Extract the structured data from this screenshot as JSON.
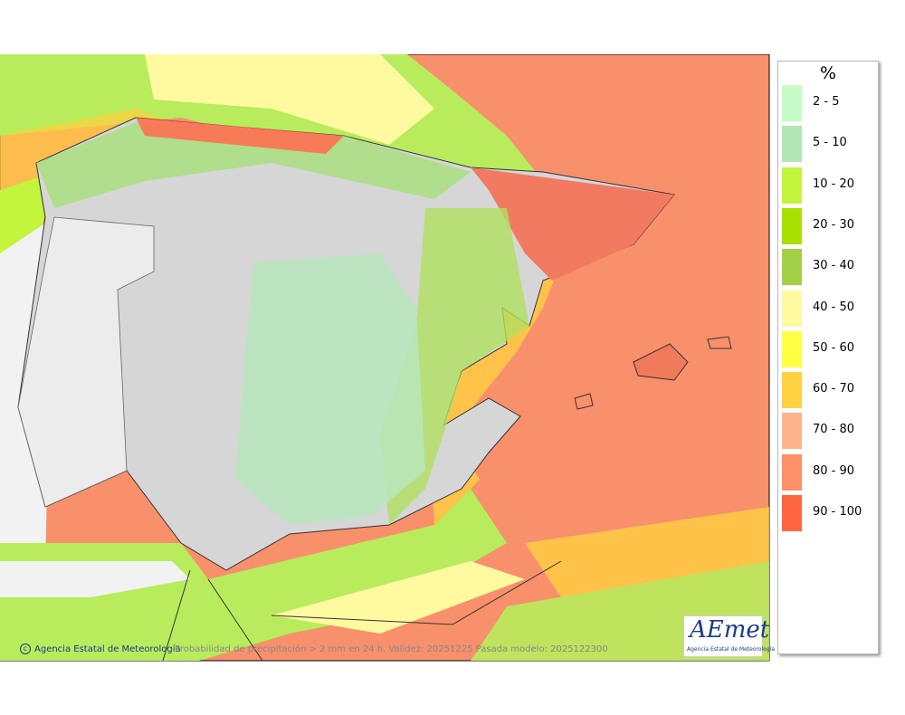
{
  "legend": {
    "title": "%",
    "items": [
      {
        "label": "2 - 5",
        "color": "#c6fcc8"
      },
      {
        "label": "5 - 10",
        "color": "#b2e6b6"
      },
      {
        "label": "10 - 20",
        "color": "#c2f53c"
      },
      {
        "label": "20 - 30",
        "color": "#a8e000"
      },
      {
        "label": "30 - 40",
        "color": "#a4d048"
      },
      {
        "label": "40 - 50",
        "color": "#fffaa0"
      },
      {
        "label": "50 - 60",
        "color": "#ffff44"
      },
      {
        "label": "60 - 70",
        "color": "#ffd040"
      },
      {
        "label": "70 - 80",
        "color": "#ffb48c"
      },
      {
        "label": "80 - 90",
        "color": "#ff9068"
      },
      {
        "label": "90 - 100",
        "color": "#ff6640"
      }
    ]
  },
  "footer": {
    "agency": "Agencia Estatal de Meteorología",
    "caption": "Probabilidad de precipitación > 2 mm en 24 h. Validez: 20251225 Pasada modelo: 2025122300"
  },
  "logo": {
    "name": "AEmet",
    "subtitle": "Agencia Estatal de Meteorología"
  }
}
